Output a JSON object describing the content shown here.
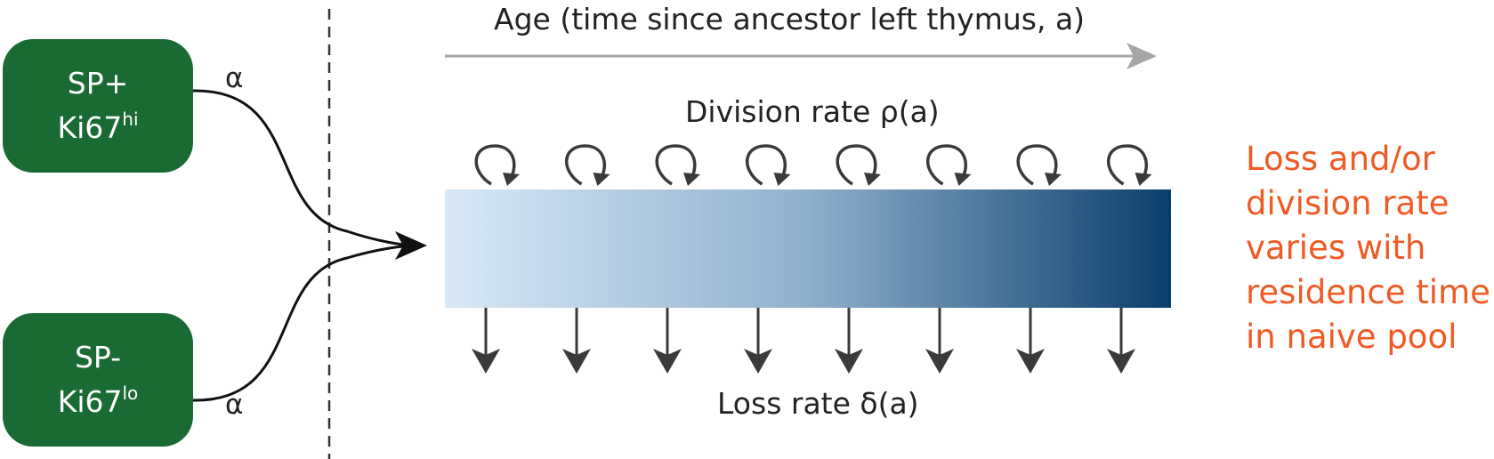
{
  "source_boxes": [
    {
      "line1": "SP+",
      "marker": "Ki67",
      "superscript": "hi",
      "color": "#1a6b33"
    },
    {
      "line1": "SP-",
      "marker": "Ki67",
      "superscript": "lo",
      "color": "#1a6b33"
    }
  ],
  "inflow_labels": {
    "top": "α",
    "bottom": "α"
  },
  "age_axis_label": "Age (time since ancestor left thymus, a)",
  "division_label": "Division rate ρ(a)",
  "loss_label": "Loss rate δ(a)",
  "side_note": [
    "Loss and/or",
    "division rate",
    "varies with",
    "residence time",
    "in naive pool"
  ],
  "colors": {
    "side_note": "#ef5a25",
    "gradient_start": "#d9e9f6",
    "gradient_end": "#0b3e6c",
    "arrow_gray": "#a6a6a6",
    "dark": "#3a3a3a"
  },
  "division_loop_count": 8,
  "loss_arrow_count": 8
}
